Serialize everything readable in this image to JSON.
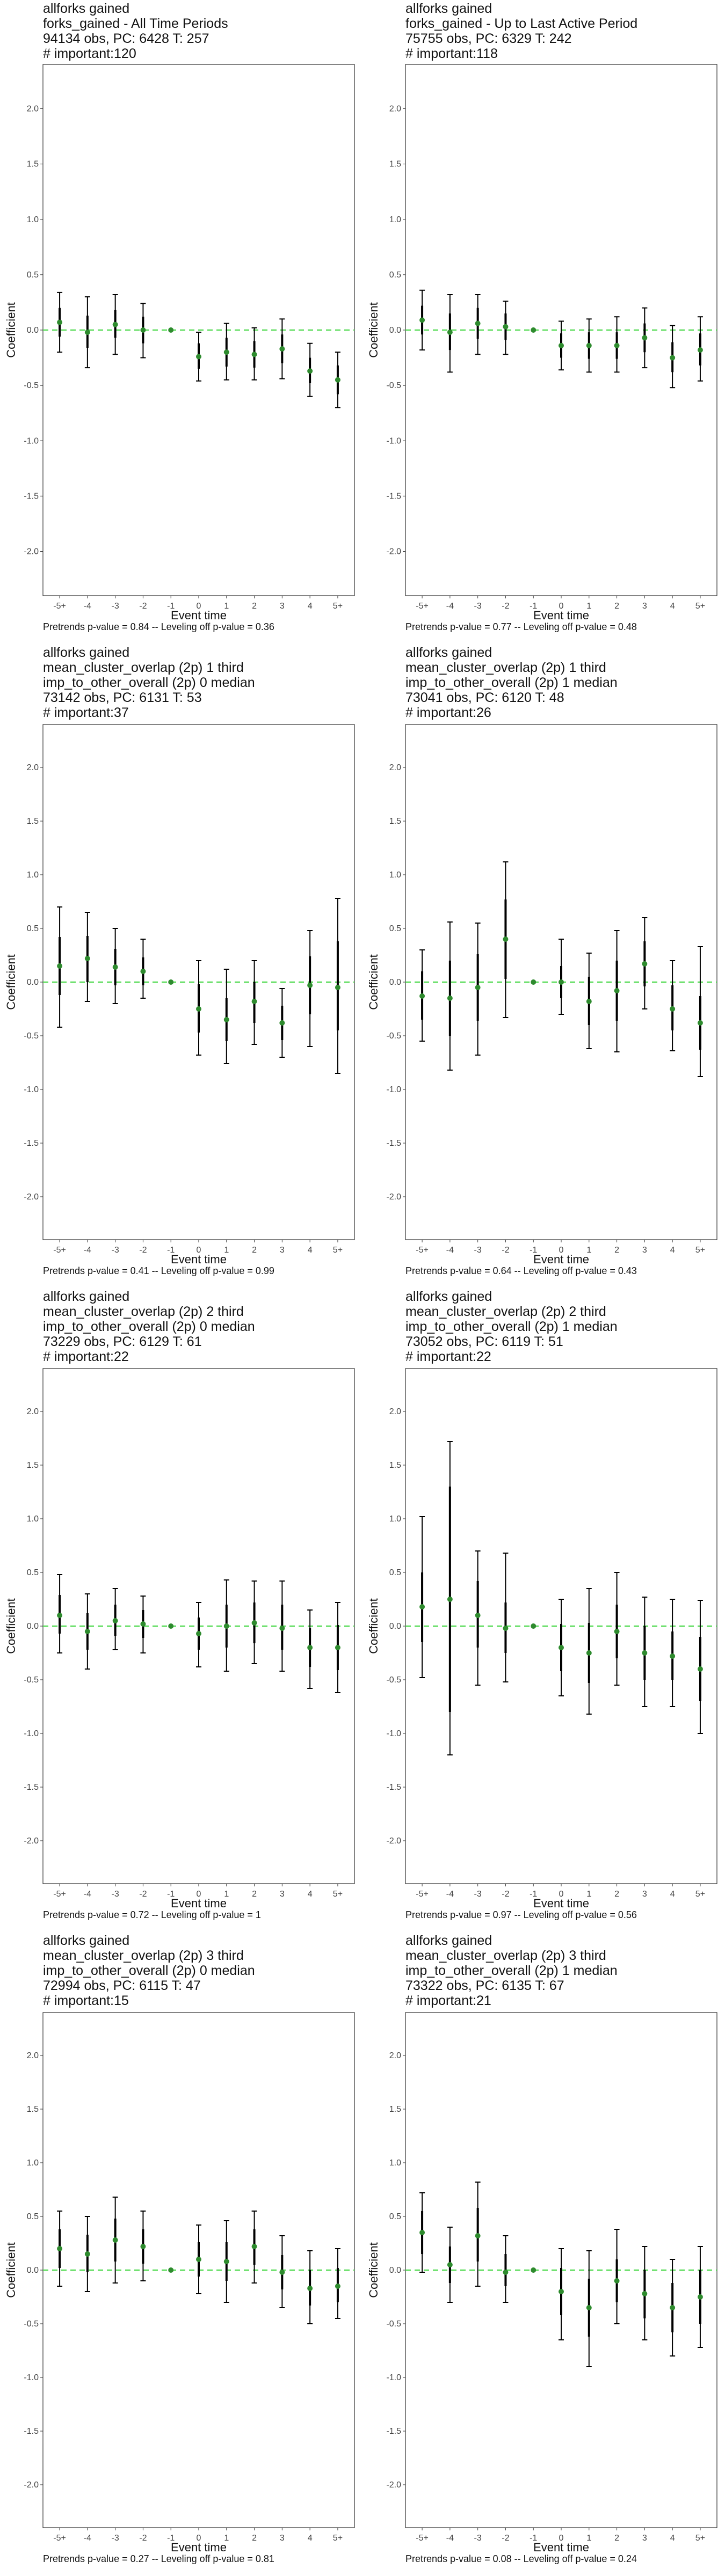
{
  "chart_data": [
    {
      "type": "scatter",
      "title": [
        "allforks gained",
        "forks_gained - All Time Periods",
        "94134 obs, PC: 6428 T: 257",
        "# important:120"
      ],
      "xlabel": "Event time",
      "ylabel": "Coefficient",
      "categories": [
        "-5+",
        "-4",
        "-3",
        "-2",
        "-1",
        "0",
        "1",
        "2",
        "3",
        "4",
        "5+"
      ],
      "estimates": [
        0.07,
        -0.02,
        0.05,
        0.0,
        0.0,
        -0.24,
        -0.2,
        -0.22,
        -0.17,
        -0.37,
        -0.45
      ],
      "ci_outer": [
        [
          -0.2,
          0.34
        ],
        [
          -0.34,
          0.3
        ],
        [
          -0.22,
          0.32
        ],
        [
          -0.25,
          0.24
        ],
        [
          0.0,
          0.0
        ],
        [
          -0.46,
          -0.02
        ],
        [
          -0.45,
          0.06
        ],
        [
          -0.45,
          0.02
        ],
        [
          -0.44,
          0.1
        ],
        [
          -0.6,
          -0.12
        ],
        [
          -0.7,
          -0.2
        ]
      ],
      "ci_inner": [
        [
          -0.06,
          0.2
        ],
        [
          -0.16,
          0.13
        ],
        [
          -0.07,
          0.18
        ],
        [
          -0.12,
          0.12
        ],
        [
          0.0,
          0.0
        ],
        [
          -0.35,
          -0.12
        ],
        [
          -0.33,
          -0.07
        ],
        [
          -0.34,
          -0.1
        ],
        [
          -0.3,
          -0.04
        ],
        [
          -0.48,
          -0.25
        ],
        [
          -0.58,
          -0.32
        ]
      ],
      "ylim": [
        -2.4,
        2.4
      ],
      "yticks": [
        -2.0,
        -1.5,
        -1.0,
        -0.5,
        0.0,
        0.5,
        1.0,
        1.5,
        2.0
      ],
      "ytick_labels": [
        "-2.0",
        "-1.5",
        "-1.0",
        "-0.5",
        "0.0",
        "0.5",
        "1.0",
        "1.5",
        "2.0"
      ],
      "reference_line": 0,
      "caption": "Pretrends p-value = 0.84 -- Leveling off p-value = 0.36"
    },
    {
      "type": "scatter",
      "title": [
        "allforks gained",
        "forks_gained - Up to Last Active Period",
        "75755 obs, PC: 6329 T: 242",
        "# important:118"
      ],
      "xlabel": "Event time",
      "ylabel": "Coefficient",
      "categories": [
        "-5+",
        "-4",
        "-3",
        "-2",
        "-1",
        "0",
        "1",
        "2",
        "3",
        "4",
        "5+"
      ],
      "estimates": [
        0.09,
        -0.02,
        0.06,
        0.03,
        0.0,
        -0.14,
        -0.14,
        -0.14,
        -0.07,
        -0.25,
        -0.18
      ],
      "ci_outer": [
        [
          -0.18,
          0.36
        ],
        [
          -0.38,
          0.32
        ],
        [
          -0.22,
          0.32
        ],
        [
          -0.22,
          0.26
        ],
        [
          0.0,
          0.0
        ],
        [
          -0.36,
          0.08
        ],
        [
          -0.38,
          0.1
        ],
        [
          -0.38,
          0.12
        ],
        [
          -0.34,
          0.2
        ],
        [
          -0.52,
          0.04
        ],
        [
          -0.46,
          0.12
        ]
      ],
      "ci_inner": [
        [
          -0.04,
          0.22
        ],
        [
          -0.18,
          0.15
        ],
        [
          -0.08,
          0.2
        ],
        [
          -0.09,
          0.15
        ],
        [
          0.0,
          0.0
        ],
        [
          -0.25,
          -0.03
        ],
        [
          -0.26,
          -0.02
        ],
        [
          -0.26,
          -0.02
        ],
        [
          -0.2,
          0.06
        ],
        [
          -0.38,
          -0.11
        ],
        [
          -0.32,
          -0.03
        ]
      ],
      "ylim": [
        -2.4,
        2.4
      ],
      "yticks": [
        -2.0,
        -1.5,
        -1.0,
        -0.5,
        0.0,
        0.5,
        1.0,
        1.5,
        2.0
      ],
      "ytick_labels": [
        "-2.0",
        "-1.5",
        "-1.0",
        "-0.5",
        "0.0",
        "0.5",
        "1.0",
        "1.5",
        "2.0"
      ],
      "reference_line": 0,
      "caption": "Pretrends p-value = 0.77 -- Leveling off p-value = 0.48"
    },
    {
      "type": "scatter",
      "title": [
        "allforks gained",
        "mean_cluster_overlap (2p) 1 third",
        "imp_to_other_overall (2p) 0 median",
        "73142 obs, PC: 6131 T: 53",
        "# important:37"
      ],
      "xlabel": "Event time",
      "ylabel": "Coefficient",
      "categories": [
        "-5+",
        "-4",
        "-3",
        "-2",
        "-1",
        "0",
        "1",
        "2",
        "3",
        "4",
        "5+"
      ],
      "estimates": [
        0.15,
        0.22,
        0.14,
        0.1,
        0.0,
        -0.25,
        -0.35,
        -0.18,
        -0.38,
        -0.03,
        -0.05
      ],
      "ci_outer": [
        [
          -0.42,
          0.7
        ],
        [
          -0.18,
          0.65
        ],
        [
          -0.2,
          0.5
        ],
        [
          -0.15,
          0.4
        ],
        [
          0.0,
          0.0
        ],
        [
          -0.68,
          0.2
        ],
        [
          -0.76,
          0.12
        ],
        [
          -0.58,
          0.2
        ],
        [
          -0.7,
          -0.06
        ],
        [
          -0.6,
          0.48
        ],
        [
          -0.85,
          0.78
        ]
      ],
      "ci_inner": [
        [
          -0.12,
          0.42
        ],
        [
          0.0,
          0.43
        ],
        [
          -0.03,
          0.31
        ],
        [
          -0.03,
          0.23
        ],
        [
          0.0,
          0.0
        ],
        [
          -0.47,
          -0.02
        ],
        [
          -0.55,
          -0.15
        ],
        [
          -0.38,
          0.0
        ],
        [
          -0.54,
          -0.22
        ],
        [
          -0.3,
          0.24
        ],
        [
          -0.45,
          0.38
        ]
      ],
      "ylim": [
        -2.4,
        2.4
      ],
      "yticks": [
        -2.0,
        -1.5,
        -1.0,
        -0.5,
        0.0,
        0.5,
        1.0,
        1.5,
        2.0
      ],
      "ytick_labels": [
        "-2.0",
        "-1.5",
        "-1.0",
        "-0.5",
        "0.0",
        "0.5",
        "1.0",
        "1.5",
        "2.0"
      ],
      "reference_line": 0,
      "caption": "Pretrends p-value = 0.41 -- Leveling off p-value = 0.99"
    },
    {
      "type": "scatter",
      "title": [
        "allforks gained",
        "mean_cluster_overlap (2p) 1 third",
        "imp_to_other_overall (2p) 1 median",
        "73041 obs, PC: 6120 T: 48",
        "# important:26"
      ],
      "xlabel": "Event time",
      "ylabel": "Coefficient",
      "categories": [
        "-5+",
        "-4",
        "-3",
        "-2",
        "-1",
        "0",
        "1",
        "2",
        "3",
        "4",
        "5+"
      ],
      "estimates": [
        -0.13,
        -0.15,
        -0.05,
        0.4,
        0.0,
        0.0,
        -0.18,
        -0.08,
        0.17,
        -0.25,
        -0.38
      ],
      "ci_outer": [
        [
          -0.55,
          0.3
        ],
        [
          -0.82,
          0.56
        ],
        [
          -0.68,
          0.55
        ],
        [
          -0.33,
          1.12
        ],
        [
          0.0,
          0.0
        ],
        [
          -0.3,
          0.4
        ],
        [
          -0.62,
          0.27
        ],
        [
          -0.65,
          0.48
        ],
        [
          -0.25,
          0.6
        ],
        [
          -0.64,
          0.2
        ],
        [
          -0.88,
          0.33
        ]
      ],
      "ci_inner": [
        [
          -0.35,
          0.1
        ],
        [
          -0.5,
          0.2
        ],
        [
          -0.36,
          0.26
        ],
        [
          0.03,
          0.77
        ],
        [
          0.0,
          0.0
        ],
        [
          -0.15,
          0.15
        ],
        [
          -0.4,
          0.05
        ],
        [
          -0.36,
          0.2
        ],
        [
          -0.04,
          0.38
        ],
        [
          -0.45,
          -0.03
        ],
        [
          -0.63,
          -0.13
        ]
      ],
      "ylim": [
        -2.4,
        2.4
      ],
      "yticks": [
        -2.0,
        -1.5,
        -1.0,
        -0.5,
        0.0,
        0.5,
        1.0,
        1.5,
        2.0
      ],
      "ytick_labels": [
        "-2.0",
        "-1.5",
        "-1.0",
        "-0.5",
        "0.0",
        "0.5",
        "1.0",
        "1.5",
        "2.0"
      ],
      "reference_line": 0,
      "caption": "Pretrends p-value = 0.64 -- Leveling off p-value = 0.43"
    },
    {
      "type": "scatter",
      "title": [
        "allforks gained",
        "mean_cluster_overlap (2p) 2 third",
        "imp_to_other_overall (2p) 0 median",
        "73229 obs, PC: 6129 T: 61",
        "# important:22"
      ],
      "xlabel": "Event time",
      "ylabel": "Coefficient",
      "categories": [
        "-5+",
        "-4",
        "-3",
        "-2",
        "-1",
        "0",
        "1",
        "2",
        "3",
        "4",
        "5+"
      ],
      "estimates": [
        0.1,
        -0.05,
        0.05,
        0.02,
        0.0,
        -0.07,
        0.0,
        0.03,
        -0.02,
        -0.2,
        -0.2
      ],
      "ci_outer": [
        [
          -0.25,
          0.48
        ],
        [
          -0.4,
          0.3
        ],
        [
          -0.22,
          0.35
        ],
        [
          -0.25,
          0.28
        ],
        [
          0.0,
          0.0
        ],
        [
          -0.38,
          0.22
        ],
        [
          -0.42,
          0.43
        ],
        [
          -0.35,
          0.42
        ],
        [
          -0.42,
          0.42
        ],
        [
          -0.58,
          0.15
        ],
        [
          -0.62,
          0.22
        ]
      ],
      "ci_inner": [
        [
          -0.07,
          0.29
        ],
        [
          -0.22,
          0.12
        ],
        [
          -0.09,
          0.2
        ],
        [
          -0.11,
          0.15
        ],
        [
          0.0,
          0.0
        ],
        [
          -0.22,
          0.08
        ],
        [
          -0.2,
          0.2
        ],
        [
          -0.16,
          0.22
        ],
        [
          -0.22,
          0.2
        ],
        [
          -0.38,
          -0.02
        ],
        [
          -0.41,
          0.01
        ]
      ],
      "ylim": [
        -2.4,
        2.4
      ],
      "yticks": [
        -2.0,
        -1.5,
        -1.0,
        -0.5,
        0.0,
        0.5,
        1.0,
        1.5,
        2.0
      ],
      "ytick_labels": [
        "-2.0",
        "-1.5",
        "-1.0",
        "-0.5",
        "0.0",
        "0.5",
        "1.0",
        "1.5",
        "2.0"
      ],
      "reference_line": 0,
      "caption": "Pretrends p-value = 0.72 -- Leveling off p-value = 1"
    },
    {
      "type": "scatter",
      "title": [
        "allforks gained",
        "mean_cluster_overlap (2p) 2 third",
        "imp_to_other_overall (2p) 1 median",
        "73052 obs, PC: 6119 T: 51",
        "# important:22"
      ],
      "xlabel": "Event time",
      "ylabel": "Coefficient",
      "categories": [
        "-5+",
        "-4",
        "-3",
        "-2",
        "-1",
        "0",
        "1",
        "2",
        "3",
        "4",
        "5+"
      ],
      "estimates": [
        0.18,
        0.25,
        0.1,
        -0.02,
        0.0,
        -0.2,
        -0.25,
        -0.05,
        -0.25,
        -0.28,
        -0.4
      ],
      "ci_outer": [
        [
          -0.48,
          1.02
        ],
        [
          -1.2,
          1.72
        ],
        [
          -0.55,
          0.7
        ],
        [
          -0.52,
          0.68
        ],
        [
          0.0,
          0.0
        ],
        [
          -0.65,
          0.25
        ],
        [
          -0.82,
          0.35
        ],
        [
          -0.55,
          0.5
        ],
        [
          -0.75,
          0.27
        ],
        [
          -0.75,
          0.25
        ],
        [
          -1.0,
          0.24
        ]
      ],
      "ci_inner": [
        [
          -0.15,
          0.5
        ],
        [
          -0.8,
          1.3
        ],
        [
          -0.2,
          0.42
        ],
        [
          -0.25,
          0.22
        ],
        [
          0.0,
          0.0
        ],
        [
          -0.42,
          0.02
        ],
        [
          -0.53,
          0.03
        ],
        [
          -0.3,
          0.2
        ],
        [
          -0.5,
          0.0
        ],
        [
          -0.5,
          -0.05
        ],
        [
          -0.7,
          -0.1
        ]
      ],
      "ylim": [
        -2.4,
        2.4
      ],
      "yticks": [
        -2.0,
        -1.5,
        -1.0,
        -0.5,
        0.0,
        0.5,
        1.0,
        1.5,
        2.0
      ],
      "ytick_labels": [
        "-2.0",
        "-1.5",
        "-1.0",
        "-0.5",
        "0.0",
        "0.5",
        "1.0",
        "1.5",
        "2.0"
      ],
      "reference_line": 0,
      "caption": "Pretrends p-value = 0.97 -- Leveling off p-value = 0.56"
    },
    {
      "type": "scatter",
      "title": [
        "allforks gained",
        "mean_cluster_overlap (2p) 3 third",
        "imp_to_other_overall (2p) 0 median",
        "72994 obs, PC: 6115 T: 47",
        "# important:15"
      ],
      "xlabel": "Event time",
      "ylabel": "Coefficient",
      "categories": [
        "-5+",
        "-4",
        "-3",
        "-2",
        "-1",
        "0",
        "1",
        "2",
        "3",
        "4",
        "5+"
      ],
      "estimates": [
        0.2,
        0.15,
        0.28,
        0.22,
        0.0,
        0.1,
        0.08,
        0.22,
        -0.02,
        -0.17,
        -0.15
      ],
      "ci_outer": [
        [
          -0.15,
          0.55
        ],
        [
          -0.2,
          0.5
        ],
        [
          -0.12,
          0.68
        ],
        [
          -0.1,
          0.55
        ],
        [
          0.0,
          0.0
        ],
        [
          -0.22,
          0.42
        ],
        [
          -0.3,
          0.46
        ],
        [
          -0.12,
          0.55
        ],
        [
          -0.35,
          0.32
        ],
        [
          -0.5,
          0.18
        ],
        [
          -0.45,
          0.2
        ]
      ],
      "ci_inner": [
        [
          0.02,
          0.38
        ],
        [
          -0.02,
          0.33
        ],
        [
          0.08,
          0.48
        ],
        [
          0.06,
          0.38
        ],
        [
          0.0,
          0.0
        ],
        [
          -0.06,
          0.26
        ],
        [
          -0.1,
          0.26
        ],
        [
          0.05,
          0.38
        ],
        [
          -0.18,
          0.14
        ],
        [
          -0.33,
          0.0
        ],
        [
          -0.3,
          0.02
        ]
      ],
      "ylim": [
        -2.4,
        2.4
      ],
      "yticks": [
        -2.0,
        -1.5,
        -1.0,
        -0.5,
        0.0,
        0.5,
        1.0,
        1.5,
        2.0
      ],
      "ytick_labels": [
        "-2.0",
        "-1.5",
        "-1.0",
        "-0.5",
        "0.0",
        "0.5",
        "1.0",
        "1.5",
        "2.0"
      ],
      "reference_line": 0,
      "caption": "Pretrends p-value = 0.27 -- Leveling off p-value = 0.81"
    },
    {
      "type": "scatter",
      "title": [
        "allforks gained",
        "mean_cluster_overlap (2p) 3 third",
        "imp_to_other_overall (2p) 1 median",
        "73322 obs, PC: 6135 T: 67",
        "# important:21"
      ],
      "xlabel": "Event time",
      "ylabel": "Coefficient",
      "categories": [
        "-5+",
        "-4",
        "-3",
        "-2",
        "-1",
        "0",
        "1",
        "2",
        "3",
        "4",
        "5+"
      ],
      "estimates": [
        0.35,
        0.05,
        0.32,
        -0.02,
        0.0,
        -0.2,
        -0.35,
        -0.1,
        -0.22,
        -0.35,
        -0.25
      ],
      "ci_outer": [
        [
          -0.02,
          0.72
        ],
        [
          -0.3,
          0.4
        ],
        [
          -0.15,
          0.82
        ],
        [
          -0.3,
          0.32
        ],
        [
          0.0,
          0.0
        ],
        [
          -0.65,
          0.2
        ],
        [
          -0.9,
          0.18
        ],
        [
          -0.5,
          0.38
        ],
        [
          -0.65,
          0.22
        ],
        [
          -0.8,
          0.1
        ],
        [
          -0.72,
          0.22
        ]
      ],
      "ci_inner": [
        [
          0.15,
          0.55
        ],
        [
          -0.12,
          0.22
        ],
        [
          0.08,
          0.58
        ],
        [
          -0.15,
          0.15
        ],
        [
          0.0,
          0.0
        ],
        [
          -0.42,
          0.02
        ],
        [
          -0.62,
          -0.08
        ],
        [
          -0.3,
          0.1
        ],
        [
          -0.45,
          0.0
        ],
        [
          -0.58,
          -0.12
        ],
        [
          -0.5,
          0.0
        ]
      ],
      "ylim": [
        -2.4,
        2.4
      ],
      "yticks": [
        -2.0,
        -1.5,
        -1.0,
        -0.5,
        0.0,
        0.5,
        1.0,
        1.5,
        2.0
      ],
      "ytick_labels": [
        "-2.0",
        "-1.5",
        "-1.0",
        "-0.5",
        "0.0",
        "0.5",
        "1.0",
        "1.5",
        "2.0"
      ],
      "reference_line": 0,
      "caption": "Pretrends p-value = 0.08 -- Leveling off p-value = 0.24"
    }
  ],
  "colors": {
    "point": "#2e8b2e",
    "error_bar": "#000000",
    "reference_line": "#4cd94c",
    "panel_border": "#333333",
    "tick_text": "#444444"
  }
}
